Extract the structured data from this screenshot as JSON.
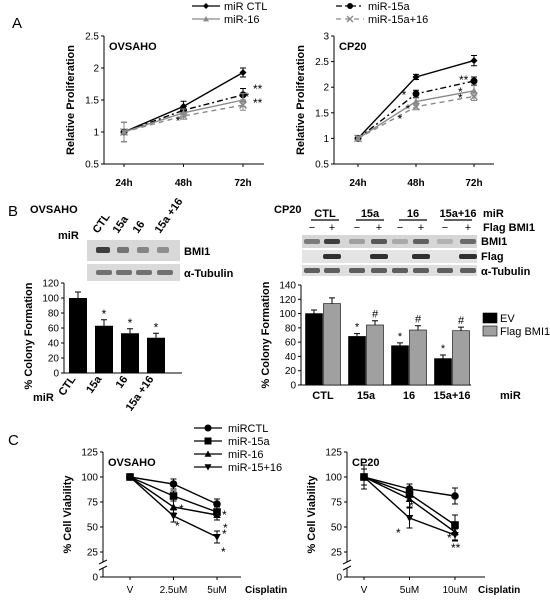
{
  "panel_labels": [
    "A",
    "B",
    "C"
  ],
  "legend_A": [
    {
      "name": "miR CTL",
      "color": "#000000",
      "marker": "diamond",
      "dash": "none"
    },
    {
      "name": "miR-16",
      "color": "#8a8a8a",
      "marker": "triangle",
      "dash": "none"
    },
    {
      "name": "miR-15a",
      "color": "#000000",
      "marker": "circle",
      "dash": "6,3,2,3"
    },
    {
      "name": "miR-15a+16",
      "color": "#8a8a8a",
      "marker": "x",
      "dash": "5,4"
    }
  ],
  "legend_C": [
    {
      "name": "miRCTL",
      "marker": "circle"
    },
    {
      "name": "miR-15a",
      "marker": "square"
    },
    {
      "name": "miR-16",
      "marker": "triangle"
    },
    {
      "name": "miR-15+16",
      "marker": "tri-down"
    }
  ],
  "blot_B1": {
    "title": "OVSAHO",
    "row_label": "miR",
    "lanes": [
      "CTL",
      "15a",
      "16",
      "15a +16"
    ],
    "bands": [
      "BMI1",
      "α-Tubulin"
    ]
  },
  "blot_B2": {
    "title": "CP20",
    "row1_label": "miR",
    "row2_label": "Flag BMI1",
    "groups": [
      "CTL",
      "15a",
      "16",
      "15a+16"
    ],
    "signs": [
      "−",
      "+",
      "−",
      "+",
      "−",
      "+",
      "−",
      "+"
    ],
    "bands": [
      "BMI1",
      "Flag",
      "α-Tubulin"
    ]
  },
  "chart_data": [
    {
      "id": "A1",
      "type": "line",
      "title": "OVSAHO",
      "ylabel": "Relative Proliferation",
      "xlabel": "",
      "categories": [
        "24h",
        "48h",
        "72h"
      ],
      "ylim": [
        0.5,
        2.5
      ],
      "yticks": [
        "0.5",
        "1",
        "1.5",
        "2",
        "2.5"
      ],
      "series": [
        {
          "name": "miR CTL",
          "values": [
            1.0,
            1.4,
            1.93
          ],
          "err": [
            0.15,
            0.08,
            0.07
          ]
        },
        {
          "name": "miR-15a",
          "values": [
            1.0,
            1.34,
            1.58
          ],
          "err": [
            0.15,
            0.06,
            0.1
          ]
        },
        {
          "name": "miR-16",
          "values": [
            1.0,
            1.3,
            1.5
          ],
          "err": [
            0.15,
            0.06,
            0.1
          ]
        },
        {
          "name": "miR-15a+16",
          "values": [
            1.0,
            1.25,
            1.42
          ],
          "err": [
            0.15,
            0.05,
            0.08
          ]
        }
      ],
      "annotations": [
        "*",
        "*",
        "**",
        "**"
      ]
    },
    {
      "id": "A2",
      "type": "line",
      "title": "CP20",
      "ylabel": "Relative Proliferation",
      "xlabel": "",
      "categories": [
        "24h",
        "48h",
        "72h"
      ],
      "ylim": [
        0.5,
        3
      ],
      "yticks": [
        "0.5",
        "1",
        "1.5",
        "2",
        "2.5",
        "3"
      ],
      "series": [
        {
          "name": "miR CTL",
          "values": [
            1.0,
            2.2,
            2.52
          ],
          "err": [
            0.04,
            0.05,
            0.1
          ]
        },
        {
          "name": "miR-15a",
          "values": [
            1.0,
            1.87,
            2.12
          ],
          "err": [
            0.04,
            0.07,
            0.08
          ]
        },
        {
          "name": "miR-16",
          "values": [
            1.0,
            1.72,
            1.93
          ],
          "err": [
            0.04,
            0.07,
            0.1
          ]
        },
        {
          "name": "miR-15a+16",
          "values": [
            1.0,
            1.62,
            1.82
          ],
          "err": [
            0.04,
            0.06,
            0.08
          ]
        }
      ],
      "annotations": [
        "*",
        "*",
        "*",
        "**",
        "*",
        "*"
      ]
    },
    {
      "id": "B1",
      "type": "bar",
      "title": "",
      "ylabel": "% Colony Formation",
      "xlabel": "miR",
      "categories": [
        "CTL",
        "15a",
        "16",
        "15a +16"
      ],
      "ylim": [
        0,
        120
      ],
      "yticks": [
        "0",
        "20",
        "40",
        "60",
        "80",
        "100",
        "120"
      ],
      "series": [
        {
          "name": "",
          "values": [
            100,
            63,
            53,
            47
          ],
          "err": [
            8,
            8,
            6,
            6
          ]
        }
      ],
      "annotations": [
        "",
        "*",
        "*",
        "*"
      ]
    },
    {
      "id": "B2",
      "type": "bar",
      "title": "",
      "ylabel": "% Colony Formation",
      "xlabel": "miR",
      "categories": [
        "CTL",
        "15a",
        "16",
        "15a+16"
      ],
      "ylim": [
        0,
        140
      ],
      "yticks": [
        "0",
        "20",
        "40",
        "60",
        "80",
        "100",
        "120",
        "140"
      ],
      "series": [
        {
          "name": "EV",
          "color": "#000000",
          "values": [
            100,
            68,
            55,
            37
          ],
          "err": [
            5,
            4,
            4,
            5
          ]
        },
        {
          "name": "Flag BMI1",
          "color": "#a0a0a0",
          "values": [
            114,
            84,
            77,
            76
          ],
          "err": [
            8,
            6,
            6,
            5
          ]
        }
      ],
      "annotations_ev": [
        "",
        "*",
        "*",
        "*"
      ],
      "annotations_flag": [
        "",
        "#",
        "#",
        "#"
      ]
    },
    {
      "id": "C1",
      "type": "line",
      "title": "OVSAHO",
      "ylabel": "% Cell Viability",
      "xlabel": "Cisplatin",
      "categories": [
        "V",
        "2.5uM",
        "5uM"
      ],
      "ylim": [
        0,
        125
      ],
      "yticks": [
        "0",
        "25",
        "50",
        "75",
        "100",
        "125"
      ],
      "y_axis_break": true,
      "series": [
        {
          "name": "miRCTL",
          "values": [
            100,
            93,
            73
          ],
          "err": [
            3,
            5,
            5
          ]
        },
        {
          "name": "miR-15a",
          "values": [
            100,
            81,
            65
          ],
          "err": [
            3,
            5,
            5
          ]
        },
        {
          "name": "miR-16",
          "values": [
            100,
            70,
            62
          ],
          "err": [
            3,
            6,
            5
          ]
        },
        {
          "name": "miR-15+16",
          "values": [
            100,
            61,
            40
          ],
          "err": [
            3,
            6,
            6
          ]
        }
      ],
      "annotations": [
        "*",
        "*",
        "*",
        "*",
        "*",
        "*"
      ]
    },
    {
      "id": "C2",
      "type": "line",
      "title": "CP20",
      "ylabel": "% Cell Viability",
      "xlabel": "Cisplatin",
      "categories": [
        "V",
        "5uM",
        "10uM"
      ],
      "ylim": [
        0,
        125
      ],
      "yticks": [
        "0",
        "25",
        "50",
        "75",
        "100",
        "125"
      ],
      "y_axis_break": true,
      "series": [
        {
          "name": "miRCTL",
          "values": [
            100,
            88,
            81
          ],
          "err": [
            12,
            5,
            8
          ]
        },
        {
          "name": "miR-15a",
          "values": [
            100,
            83,
            52
          ],
          "err": [
            8,
            7,
            10
          ]
        },
        {
          "name": "miR-16",
          "values": [
            100,
            78,
            45
          ],
          "err": [
            8,
            8,
            8
          ]
        },
        {
          "name": "miR-15+16",
          "values": [
            100,
            59,
            42
          ],
          "err": [
            8,
            10,
            6
          ]
        }
      ],
      "annotations": [
        "*",
        "*",
        "*",
        "*",
        "**"
      ]
    }
  ]
}
